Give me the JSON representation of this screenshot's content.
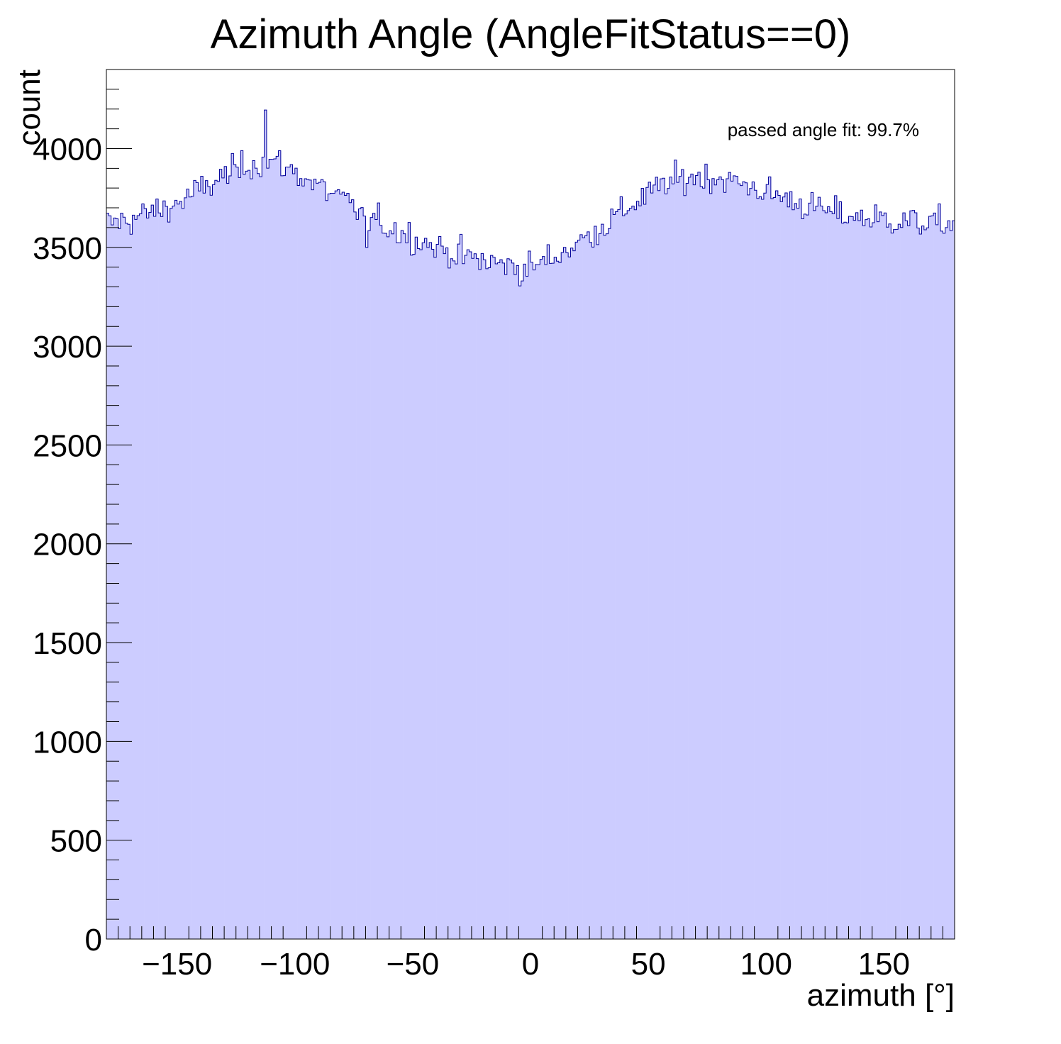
{
  "chart_data": {
    "type": "bar",
    "title": "Azimuth Angle (AngleFitStatus==0)",
    "xlabel": "azimuth [°]",
    "ylabel": "count",
    "xlim": [
      -180,
      180
    ],
    "ylim": [
      0,
      4400
    ],
    "x_ticks": [
      -150,
      -100,
      -50,
      0,
      50,
      100,
      150
    ],
    "x_tick_labels": [
      "−150",
      "−100",
      "−50",
      "0",
      "50",
      "100",
      "150"
    ],
    "y_ticks": [
      0,
      500,
      1000,
      1500,
      2000,
      2500,
      3000,
      3500,
      4000
    ],
    "y_tick_labels": [
      "0",
      "500",
      "1000",
      "1500",
      "2000",
      "2500",
      "3000",
      "3500",
      "4000"
    ],
    "annotation": "passed angle fit: 99.7%",
    "grid": false,
    "legend": "none",
    "fill_color": "#ccccff",
    "line_color": "#000099",
    "bin_width": 1,
    "values_approx_every_10deg": {
      "x": [
        -180,
        -170,
        -160,
        -150,
        -140,
        -130,
        -120,
        -110,
        -100,
        -90,
        -80,
        -70,
        -60,
        -50,
        -40,
        -30,
        -20,
        -10,
        0,
        10,
        20,
        30,
        40,
        50,
        60,
        70,
        80,
        90,
        100,
        110,
        120,
        130,
        140,
        150,
        160,
        170,
        180
      ],
      "y": [
        3620,
        3640,
        3680,
        3720,
        3790,
        3860,
        3920,
        3940,
        3880,
        3810,
        3740,
        3660,
        3600,
        3550,
        3500,
        3460,
        3430,
        3410,
        3400,
        3450,
        3520,
        3600,
        3690,
        3770,
        3830,
        3860,
        3850,
        3820,
        3780,
        3740,
        3700,
        3670,
        3650,
        3640,
        3630,
        3620,
        3620
      ]
    }
  }
}
